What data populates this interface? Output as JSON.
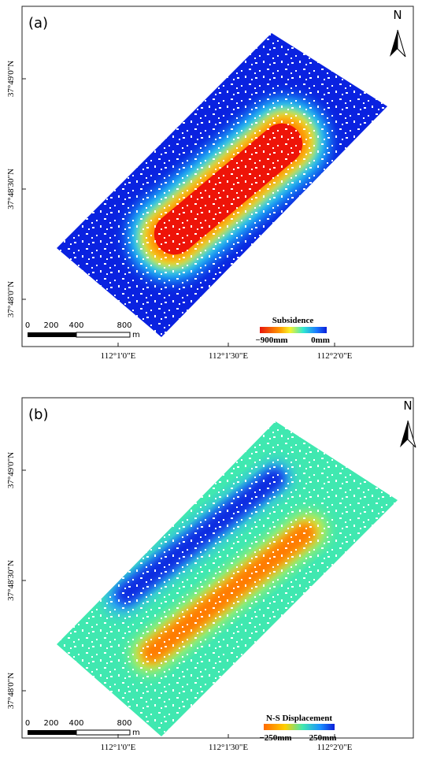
{
  "panels": [
    {
      "label": "(a)",
      "north": "N",
      "latitude_labels": [
        "37°49'0\"N",
        "37°48'30\"N",
        "37°48'0\"N"
      ],
      "longitude_labels": [
        "112°1'0\"E",
        "112°1'30\"E",
        "112°2'0\"E"
      ],
      "scale_labels": [
        "0",
        "200",
        "400",
        "800"
      ],
      "scale_unit": "m",
      "legend": {
        "title": "Subsidence",
        "min_label": "−900mm",
        "max_label": "0mm"
      }
    },
    {
      "label": "(b)",
      "north": "N",
      "latitude_labels": [
        "37°49'0\"N",
        "37°48'30\"N",
        "37°48'0\"N"
      ],
      "longitude_labels": [
        "112°1'0\"E",
        "112°1'30\"E",
        "112°2'0\"E"
      ],
      "scale_labels": [
        "0",
        "200",
        "400",
        "800"
      ],
      "scale_unit": "m",
      "legend": {
        "title": "N-S Displacement",
        "min_label": "−250mm",
        "max_label": "250mm"
      }
    }
  ]
}
